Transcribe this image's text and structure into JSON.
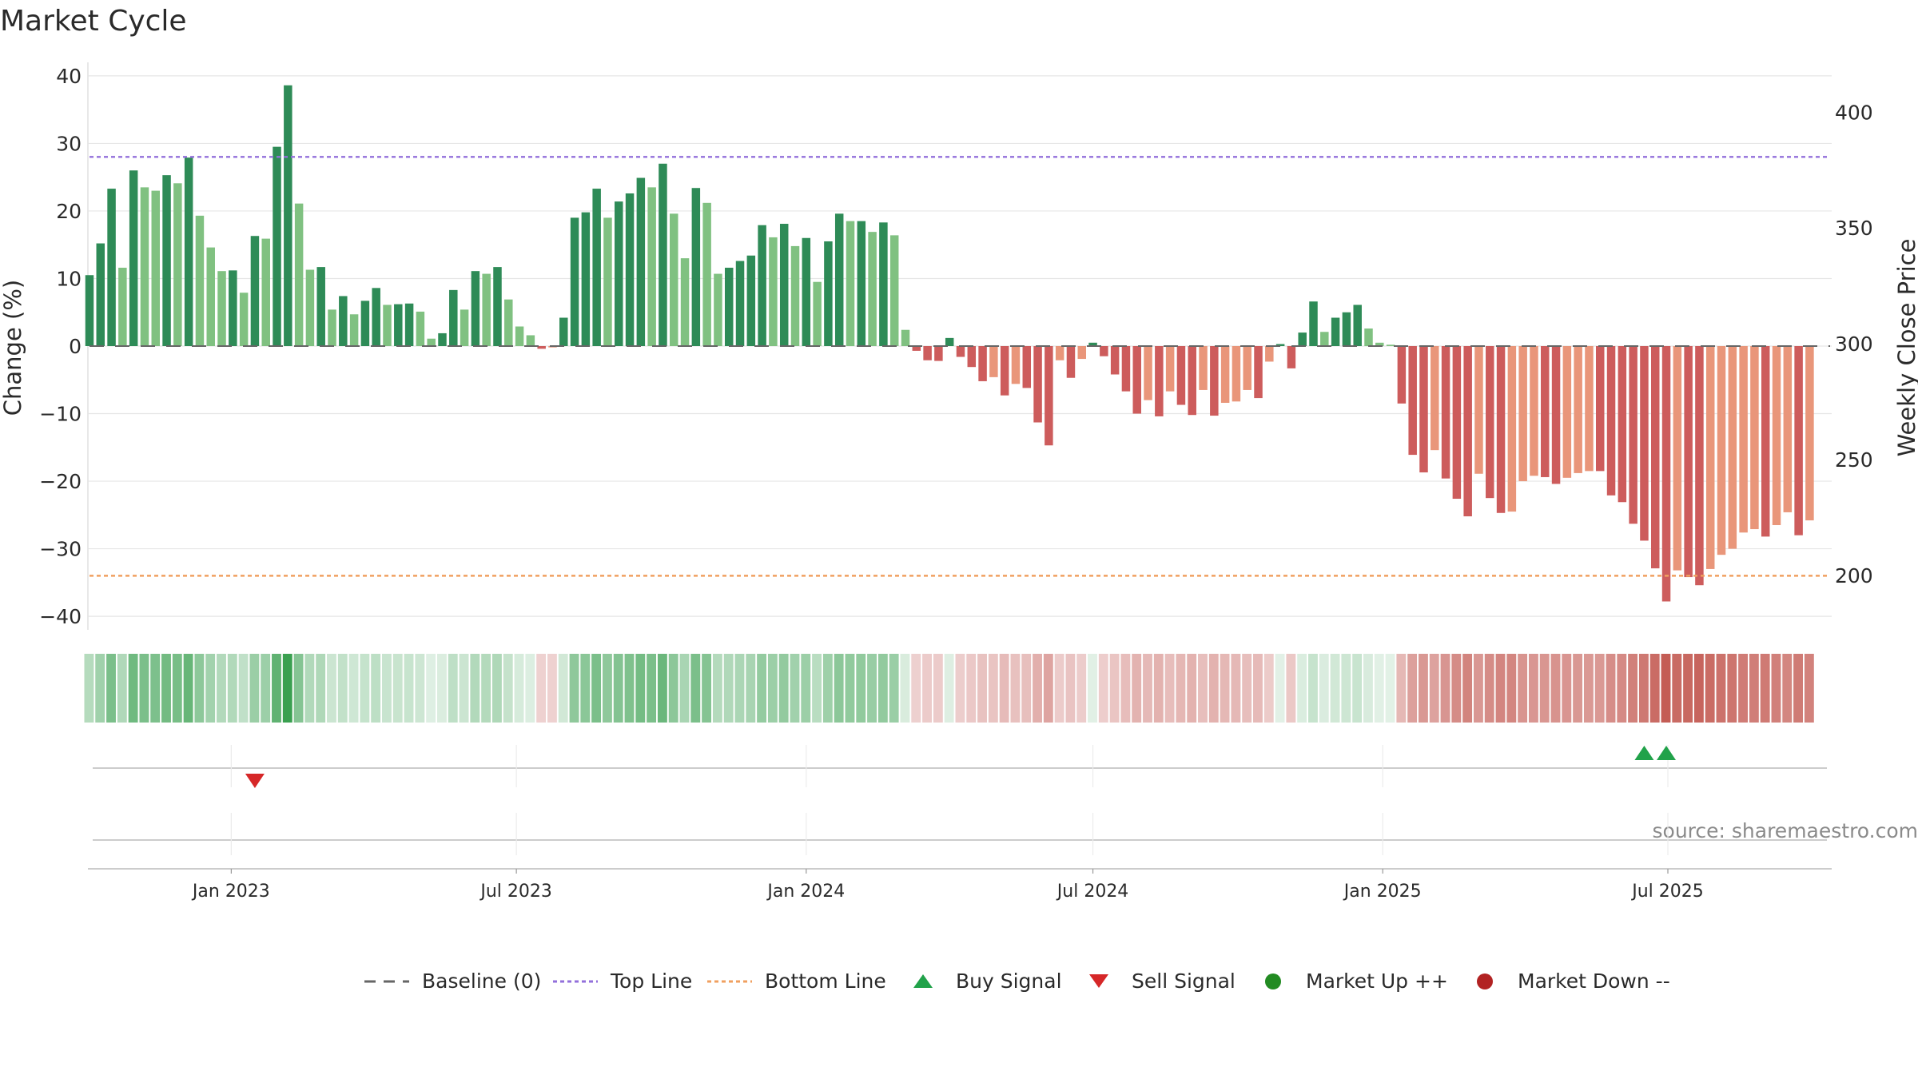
{
  "chart_data": {
    "type": "bar",
    "title": "Market Cycle",
    "ylabel": "Change (%)",
    "y2label": "Weekly Close Price",
    "ylim": [
      -42,
      42
    ],
    "yticks": [
      40,
      30,
      20,
      10,
      0,
      -10,
      -20,
      -30,
      -40
    ],
    "ytick_labels": [
      "40",
      "30",
      "20",
      "10",
      "0",
      "−10",
      "−20",
      "−30",
      "−40"
    ],
    "y2lim": [
      176.5,
      421.5
    ],
    "y2ticks": [
      400,
      350,
      300,
      250,
      200
    ],
    "y2tick_labels": [
      "400",
      "350",
      "300",
      "250",
      "200"
    ],
    "x_start": "2022-10-02",
    "x_end": "2025-10-13",
    "first_week": "2022-10-03",
    "week_days": 7,
    "xticks": [
      "2023-01-01",
      "2023-07-01",
      "2024-01-01",
      "2024-07-01",
      "2025-01-01",
      "2025-07-01"
    ],
    "xtick_labels": [
      "Jan 2023",
      "Jul 2023",
      "Jan 2024",
      "Jul 2024",
      "Jan 2025",
      "Jul 2025"
    ],
    "top_line": 28,
    "bottom_line": -34,
    "values": [
      10.5,
      15.2,
      23.3,
      11.6,
      26.0,
      23.5,
      23.0,
      25.3,
      24.1,
      27.9,
      19.3,
      14.6,
      11.1,
      11.2,
      7.9,
      16.3,
      15.9,
      29.5,
      38.6,
      21.1,
      11.3,
      11.7,
      5.4,
      7.4,
      4.7,
      6.7,
      8.6,
      6.1,
      6.2,
      6.3,
      5.1,
      1.1,
      1.9,
      8.3,
      5.4,
      11.1,
      10.7,
      11.7,
      6.9,
      2.9,
      1.6,
      -0.4,
      -0.2,
      4.2,
      19.0,
      19.8,
      23.3,
      19.0,
      21.4,
      22.6,
      24.9,
      23.5,
      27.0,
      19.6,
      13.0,
      23.4,
      21.2,
      10.7,
      11.6,
      12.6,
      13.4,
      17.9,
      16.1,
      18.1,
      14.8,
      16.0,
      9.5,
      15.5,
      19.6,
      18.5,
      18.5,
      16.9,
      18.3,
      16.4,
      2.4,
      -0.7,
      -2.1,
      -2.2,
      1.2,
      -1.6,
      -3.1,
      -5.2,
      -4.6,
      -7.3,
      -5.6,
      -6.2,
      -11.3,
      -14.7,
      -2.1,
      -4.7,
      -1.9,
      0.5,
      -1.5,
      -4.2,
      -6.7,
      -10.0,
      -8.0,
      -10.4,
      -6.7,
      -8.7,
      -10.2,
      -6.5,
      -10.3,
      -8.4,
      -8.2,
      -6.5,
      -7.7,
      -2.3,
      0.3,
      -3.3,
      2.0,
      6.6,
      2.1,
      4.2,
      5.0,
      6.1,
      2.6,
      0.5,
      0.2,
      -8.5,
      -16.1,
      -18.7,
      -15.4,
      -19.6,
      -22.6,
      -25.2,
      -18.9,
      -22.5,
      -24.7,
      -24.5,
      -20.0,
      -19.2,
      -19.4,
      -20.4,
      -19.5,
      -18.8,
      -18.5,
      -18.5,
      -22.1,
      -23.1,
      -26.3,
      -28.8,
      -32.9,
      -37.8,
      -33.2,
      -34.2,
      -35.4,
      -33.0,
      -30.9,
      -30.0,
      -27.6,
      -27.1,
      -28.2,
      -26.5,
      -24.6,
      -28.0,
      -25.8
    ],
    "price": [],
    "buy_signals": [
      "2025-06-16",
      "2025-06-30"
    ],
    "sell_signals": [
      "2023-01-16"
    ],
    "market_up": [],
    "market_down": [],
    "legend": [
      "Baseline (0)",
      "Top Line",
      "Bottom Line",
      "Buy Signal",
      "Sell Signal",
      "Market Up ++",
      "Market Down --"
    ],
    "legend_position": "bottom-center",
    "source": "source: sharemaestro.com",
    "colors": {
      "up_dark": "#2e8b57",
      "up_light": "#80c181",
      "down_dark": "#cd5c5c",
      "down_light": "#e9967a",
      "top_line": "#9370db",
      "bottom_line": "#f0a060",
      "buy": "#21a24a",
      "sell": "#d62728",
      "market_up": "#228b22",
      "market_down": "#b22222",
      "baseline": "#666666"
    }
  }
}
